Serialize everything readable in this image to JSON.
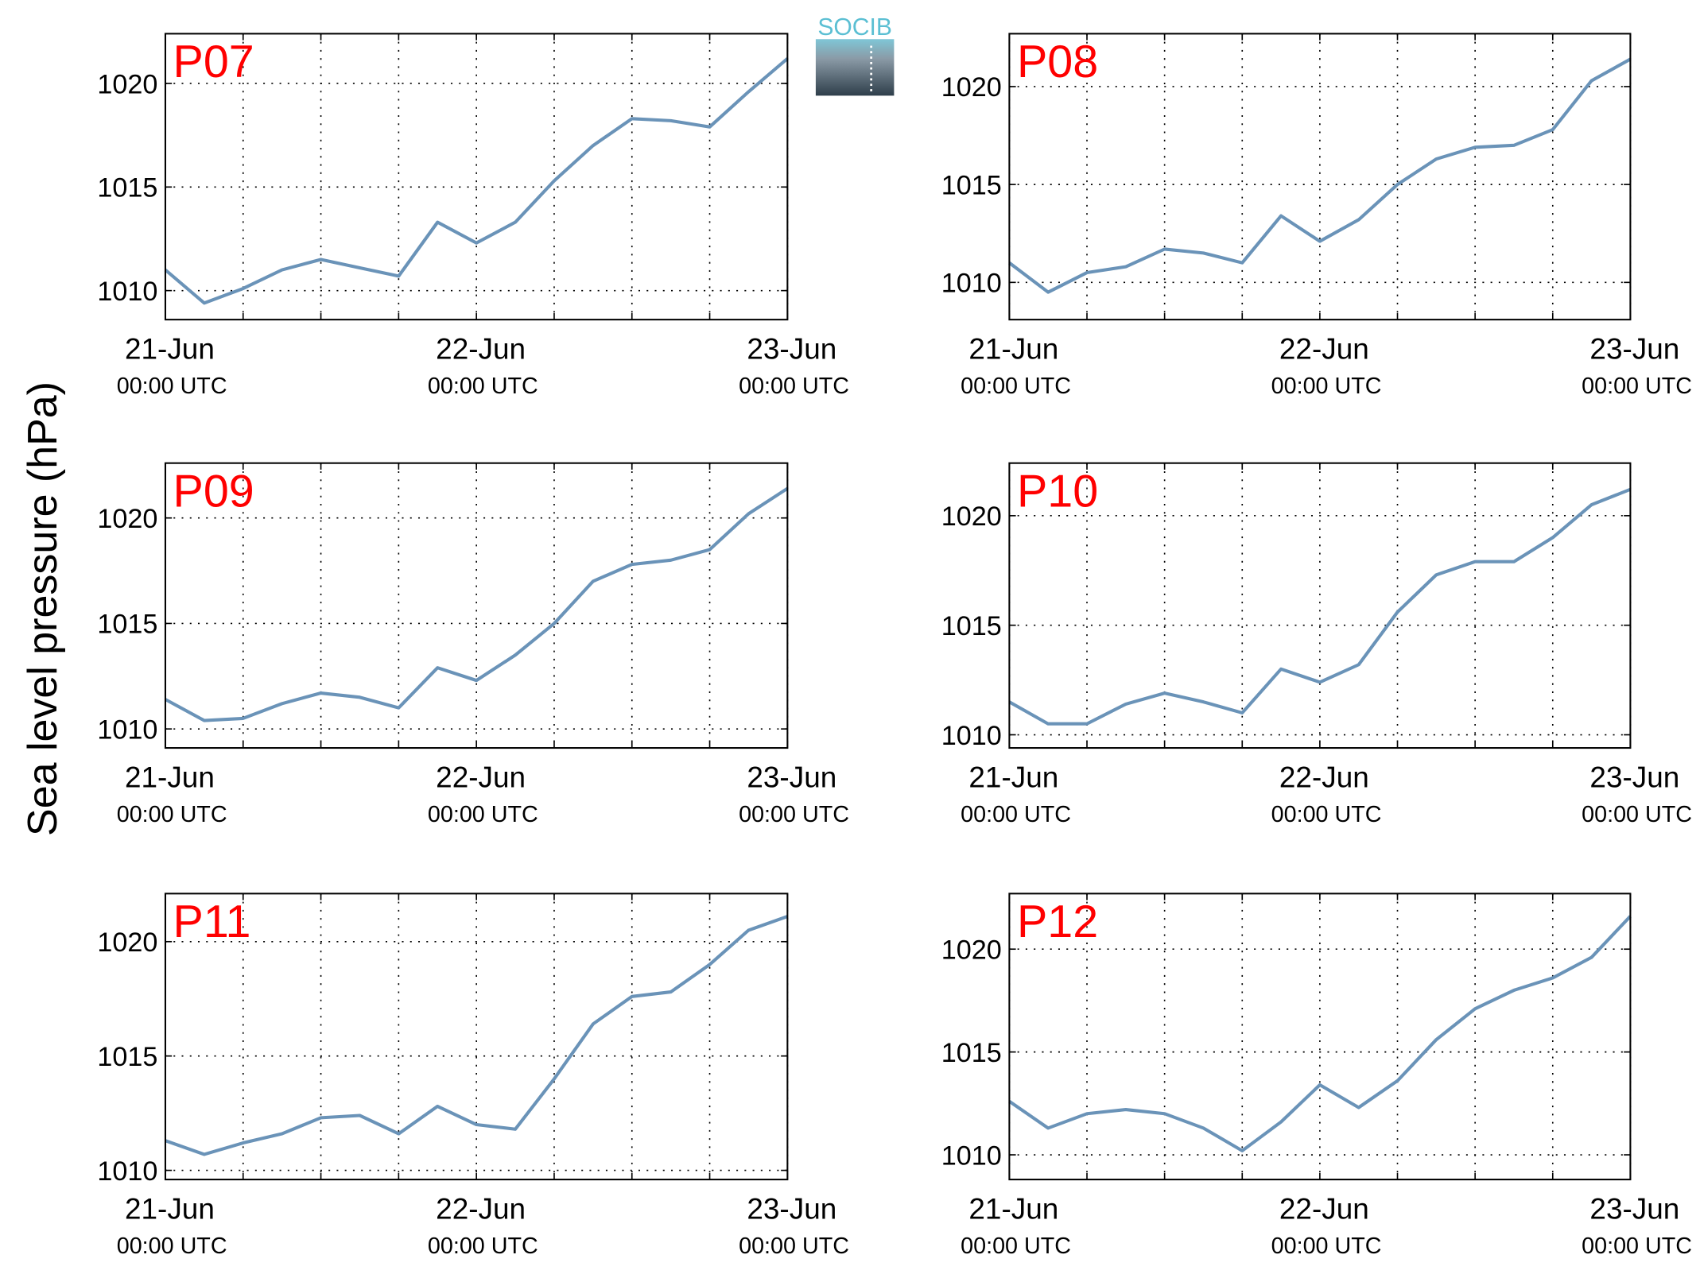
{
  "ylabel": "Sea level pressure (hPa)",
  "logo": "SOCIB",
  "chart_data": [
    {
      "type": "line",
      "title": "P07",
      "x": [
        "21-Jun 00:00",
        "21-Jun 03:00",
        "21-Jun 06:00",
        "21-Jun 09:00",
        "21-Jun 12:00",
        "21-Jun 15:00",
        "21-Jun 18:00",
        "21-Jun 21:00",
        "22-Jun 00:00",
        "22-Jun 03:00",
        "22-Jun 06:00",
        "22-Jun 09:00",
        "22-Jun 12:00",
        "22-Jun 15:00",
        "22-Jun 18:00",
        "22-Jun 21:00",
        "23-Jun 00:00"
      ],
      "series": [
        {
          "color": "#6a93b8",
          "values": [
            1011.0,
            1009.4,
            1010.1,
            1011.0,
            1011.5,
            1011.1,
            1010.7,
            1013.3,
            1012.3,
            1013.3,
            1015.3,
            1017.0,
            1018.3,
            1018.2,
            1017.9,
            1019.6,
            1021.2
          ]
        }
      ],
      "xlim": [
        "21-Jun 00:00",
        "23-Jun 00:00"
      ],
      "xticks": [
        {
          "value": "21-Jun 00:00",
          "label": [
            "21-Jun",
            "00:00 UTC"
          ]
        },
        {
          "value": "21-Jun 06:00",
          "label": null
        },
        {
          "value": "21-Jun 12:00",
          "label": null
        },
        {
          "value": "21-Jun 18:00",
          "label": null
        },
        {
          "value": "22-Jun 00:00",
          "label": [
            "22-Jun",
            "00:00 UTC"
          ]
        },
        {
          "value": "22-Jun 06:00",
          "label": null
        },
        {
          "value": "22-Jun 12:00",
          "label": null
        },
        {
          "value": "22-Jun 18:00",
          "label": null
        },
        {
          "value": "23-Jun 00:00",
          "label": [
            "23-Jun",
            "00:00 UTC"
          ]
        }
      ],
      "ylim": [
        1008.6,
        1022.4
      ],
      "yticks": [
        1010,
        1015,
        1020
      ],
      "grid": true
    },
    {
      "type": "line",
      "title": "P08",
      "x": [
        "21-Jun 00:00",
        "21-Jun 03:00",
        "21-Jun 06:00",
        "21-Jun 09:00",
        "21-Jun 12:00",
        "21-Jun 15:00",
        "21-Jun 18:00",
        "21-Jun 21:00",
        "22-Jun 00:00",
        "22-Jun 03:00",
        "22-Jun 06:00",
        "22-Jun 09:00",
        "22-Jun 12:00",
        "22-Jun 15:00",
        "22-Jun 18:00",
        "22-Jun 21:00",
        "23-Jun 00:00"
      ],
      "series": [
        {
          "color": "#6a93b8",
          "values": [
            1011.0,
            1009.5,
            1010.5,
            1010.8,
            1011.7,
            1011.5,
            1011.0,
            1013.4,
            1012.1,
            1013.2,
            1015.0,
            1016.3,
            1016.9,
            1017.0,
            1017.8,
            1020.3,
            1021.4
          ]
        }
      ],
      "xlim": [
        "21-Jun 00:00",
        "23-Jun 00:00"
      ],
      "xticks": [
        {
          "value": "21-Jun 00:00",
          "label": [
            "21-Jun",
            "00:00 UTC"
          ]
        },
        {
          "value": "21-Jun 06:00",
          "label": null
        },
        {
          "value": "21-Jun 12:00",
          "label": null
        },
        {
          "value": "21-Jun 18:00",
          "label": null
        },
        {
          "value": "22-Jun 00:00",
          "label": [
            "22-Jun",
            "00:00 UTC"
          ]
        },
        {
          "value": "22-Jun 06:00",
          "label": null
        },
        {
          "value": "22-Jun 12:00",
          "label": null
        },
        {
          "value": "22-Jun 18:00",
          "label": null
        },
        {
          "value": "23-Jun 00:00",
          "label": [
            "23-Jun",
            "00:00 UTC"
          ]
        }
      ],
      "ylim": [
        1008.1,
        1022.7
      ],
      "yticks": [
        1010,
        1015,
        1020
      ],
      "grid": true
    },
    {
      "type": "line",
      "title": "P09",
      "x": [
        "21-Jun 00:00",
        "21-Jun 03:00",
        "21-Jun 06:00",
        "21-Jun 09:00",
        "21-Jun 12:00",
        "21-Jun 15:00",
        "21-Jun 18:00",
        "21-Jun 21:00",
        "22-Jun 00:00",
        "22-Jun 03:00",
        "22-Jun 06:00",
        "22-Jun 09:00",
        "22-Jun 12:00",
        "22-Jun 15:00",
        "22-Jun 18:00",
        "22-Jun 21:00",
        "23-Jun 00:00"
      ],
      "series": [
        {
          "color": "#6a93b8",
          "values": [
            1011.4,
            1010.4,
            1010.5,
            1011.2,
            1011.7,
            1011.5,
            1011.0,
            1012.9,
            1012.3,
            1013.5,
            1015.0,
            1017.0,
            1017.8,
            1018.0,
            1018.5,
            1020.2,
            1021.4
          ]
        }
      ],
      "xlim": [
        "21-Jun 00:00",
        "23-Jun 00:00"
      ],
      "xticks": [
        {
          "value": "21-Jun 00:00",
          "label": [
            "21-Jun",
            "00:00 UTC"
          ]
        },
        {
          "value": "21-Jun 06:00",
          "label": null
        },
        {
          "value": "21-Jun 12:00",
          "label": null
        },
        {
          "value": "21-Jun 18:00",
          "label": null
        },
        {
          "value": "22-Jun 00:00",
          "label": [
            "22-Jun",
            "00:00 UTC"
          ]
        },
        {
          "value": "22-Jun 06:00",
          "label": null
        },
        {
          "value": "22-Jun 12:00",
          "label": null
        },
        {
          "value": "22-Jun 18:00",
          "label": null
        },
        {
          "value": "23-Jun 00:00",
          "label": [
            "23-Jun",
            "00:00 UTC"
          ]
        }
      ],
      "ylim": [
        1009.1,
        1022.6
      ],
      "yticks": [
        1010,
        1015,
        1020
      ],
      "grid": true
    },
    {
      "type": "line",
      "title": "P10",
      "x": [
        "21-Jun 00:00",
        "21-Jun 03:00",
        "21-Jun 06:00",
        "21-Jun 09:00",
        "21-Jun 12:00",
        "21-Jun 15:00",
        "21-Jun 18:00",
        "21-Jun 21:00",
        "22-Jun 00:00",
        "22-Jun 03:00",
        "22-Jun 06:00",
        "22-Jun 09:00",
        "22-Jun 12:00",
        "22-Jun 15:00",
        "22-Jun 18:00",
        "22-Jun 21:00",
        "23-Jun 00:00"
      ],
      "series": [
        {
          "color": "#6a93b8",
          "values": [
            1011.5,
            1010.5,
            1010.5,
            1011.4,
            1011.9,
            1011.5,
            1011.0,
            1013.0,
            1012.4,
            1013.2,
            1015.6,
            1017.3,
            1017.9,
            1017.9,
            1019.0,
            1020.5,
            1021.2
          ]
        }
      ],
      "xlim": [
        "21-Jun 00:00",
        "23-Jun 00:00"
      ],
      "xticks": [
        {
          "value": "21-Jun 00:00",
          "label": [
            "21-Jun",
            "00:00 UTC"
          ]
        },
        {
          "value": "21-Jun 06:00",
          "label": null
        },
        {
          "value": "21-Jun 12:00",
          "label": null
        },
        {
          "value": "21-Jun 18:00",
          "label": null
        },
        {
          "value": "22-Jun 00:00",
          "label": [
            "22-Jun",
            "00:00 UTC"
          ]
        },
        {
          "value": "22-Jun 06:00",
          "label": null
        },
        {
          "value": "22-Jun 12:00",
          "label": null
        },
        {
          "value": "22-Jun 18:00",
          "label": null
        },
        {
          "value": "23-Jun 00:00",
          "label": [
            "23-Jun",
            "00:00 UTC"
          ]
        }
      ],
      "ylim": [
        1009.4,
        1022.4
      ],
      "yticks": [
        1010,
        1015,
        1020
      ],
      "grid": true
    },
    {
      "type": "line",
      "title": "P11",
      "x": [
        "21-Jun 00:00",
        "21-Jun 03:00",
        "21-Jun 06:00",
        "21-Jun 09:00",
        "21-Jun 12:00",
        "21-Jun 15:00",
        "21-Jun 18:00",
        "21-Jun 21:00",
        "22-Jun 00:00",
        "22-Jun 03:00",
        "22-Jun 06:00",
        "22-Jun 09:00",
        "22-Jun 12:00",
        "22-Jun 15:00",
        "22-Jun 18:00",
        "22-Jun 21:00",
        "23-Jun 00:00"
      ],
      "series": [
        {
          "color": "#6a93b8",
          "values": [
            1011.3,
            1010.7,
            1011.2,
            1011.6,
            1012.3,
            1012.4,
            1011.6,
            1012.8,
            1012.0,
            1011.8,
            1014.0,
            1016.4,
            1017.6,
            1017.8,
            1019.0,
            1020.5,
            1021.1
          ]
        }
      ],
      "xlim": [
        "21-Jun 00:00",
        "23-Jun 00:00"
      ],
      "xticks": [
        {
          "value": "21-Jun 00:00",
          "label": [
            "21-Jun",
            "00:00 UTC"
          ]
        },
        {
          "value": "21-Jun 06:00",
          "label": null
        },
        {
          "value": "21-Jun 12:00",
          "label": null
        },
        {
          "value": "21-Jun 18:00",
          "label": null
        },
        {
          "value": "22-Jun 00:00",
          "label": [
            "22-Jun",
            "00:00 UTC"
          ]
        },
        {
          "value": "22-Jun 06:00",
          "label": null
        },
        {
          "value": "22-Jun 12:00",
          "label": null
        },
        {
          "value": "22-Jun 18:00",
          "label": null
        },
        {
          "value": "23-Jun 00:00",
          "label": [
            "23-Jun",
            "00:00 UTC"
          ]
        }
      ],
      "ylim": [
        1009.6,
        1022.1
      ],
      "yticks": [
        1010,
        1015,
        1020
      ],
      "grid": true
    },
    {
      "type": "line",
      "title": "P12",
      "x": [
        "21-Jun 00:00",
        "21-Jun 03:00",
        "21-Jun 06:00",
        "21-Jun 09:00",
        "21-Jun 12:00",
        "21-Jun 15:00",
        "21-Jun 18:00",
        "21-Jun 21:00",
        "22-Jun 00:00",
        "22-Jun 03:00",
        "22-Jun 06:00",
        "22-Jun 09:00",
        "22-Jun 12:00",
        "22-Jun 15:00",
        "22-Jun 18:00",
        "22-Jun 21:00",
        "23-Jun 00:00"
      ],
      "series": [
        {
          "color": "#6a93b8",
          "values": [
            1012.6,
            1011.3,
            1012.0,
            1012.2,
            1012.0,
            1011.3,
            1010.2,
            1011.6,
            1013.4,
            1012.3,
            1013.6,
            1015.6,
            1017.1,
            1018.0,
            1018.6,
            1019.6,
            1021.6
          ]
        }
      ],
      "xlim": [
        "21-Jun 00:00",
        "23-Jun 00:00"
      ],
      "xticks": [
        {
          "value": "21-Jun 00:00",
          "label": [
            "21-Jun",
            "00:00 UTC"
          ]
        },
        {
          "value": "21-Jun 06:00",
          "label": null
        },
        {
          "value": "21-Jun 12:00",
          "label": null
        },
        {
          "value": "21-Jun 18:00",
          "label": null
        },
        {
          "value": "22-Jun 00:00",
          "label": [
            "22-Jun",
            "00:00 UTC"
          ]
        },
        {
          "value": "22-Jun 06:00",
          "label": null
        },
        {
          "value": "22-Jun 12:00",
          "label": null
        },
        {
          "value": "22-Jun 18:00",
          "label": null
        },
        {
          "value": "23-Jun 00:00",
          "label": [
            "23-Jun",
            "00:00 UTC"
          ]
        }
      ],
      "ylim": [
        1008.8,
        1022.7
      ],
      "yticks": [
        1010,
        1015,
        1020
      ],
      "grid": true
    }
  ]
}
